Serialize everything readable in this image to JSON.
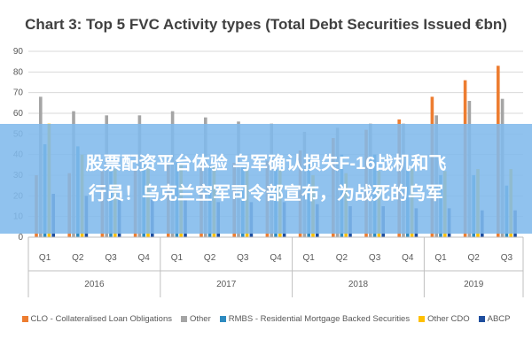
{
  "chart_data": {
    "type": "bar",
    "title": "Chart 3: Top 5 FVC Activity types (Total Debt Securities Issued €bn)",
    "quarters": [
      "Q1",
      "Q2",
      "Q3",
      "Q4",
      "Q1",
      "Q2",
      "Q3",
      "Q4",
      "Q1",
      "Q2",
      "Q3",
      "Q4",
      "Q1",
      "Q2",
      "Q3"
    ],
    "years": [
      {
        "label": "2016",
        "span": 4
      },
      {
        "label": "2017",
        "span": 4
      },
      {
        "label": "2018",
        "span": 4
      },
      {
        "label": "2019",
        "span": 3
      }
    ],
    "ylim": [
      0,
      90
    ],
    "yticks": [
      0,
      10,
      20,
      30,
      40,
      50,
      60,
      70,
      80,
      90
    ],
    "grid": true,
    "legend_position": "bottom",
    "series": [
      {
        "name": "CLO - Collateralised Loan Obligations",
        "color": "#ed7d31",
        "values": [
          30,
          31,
          32,
          33,
          35,
          36,
          36,
          37,
          42,
          48,
          52,
          57,
          68,
          76,
          83
        ]
      },
      {
        "name": "Other",
        "color": "#a5a5a5",
        "values": [
          68,
          61,
          59,
          59,
          61,
          58,
          56,
          55,
          51,
          53,
          55,
          55,
          59,
          66,
          67
        ]
      },
      {
        "name": "RMBS - Residential Mortgage Backed Securities",
        "color": "#2e8bc0",
        "values": [
          45,
          44,
          38,
          37,
          37,
          35,
          34,
          33,
          39,
          40,
          40,
          34,
          30,
          30,
          25
        ]
      },
      {
        "name": "Other CDO",
        "color": "#ffc000",
        "values": [
          55,
          40,
          33,
          34,
          35,
          34,
          34,
          33,
          30,
          31,
          32,
          33,
          32,
          33,
          33
        ]
      },
      {
        "name": "ABCP",
        "color": "#1f4e9e",
        "values": [
          21,
          20,
          19,
          18,
          18,
          17,
          17,
          17,
          16,
          15,
          15,
          14,
          14,
          13,
          13
        ]
      }
    ]
  },
  "overlay": {
    "line1": "股票配资平台体验 乌军确认损失F-16战机和飞",
    "line2": "行员！乌克兰空军司令部宣布，为战死的乌军"
  }
}
